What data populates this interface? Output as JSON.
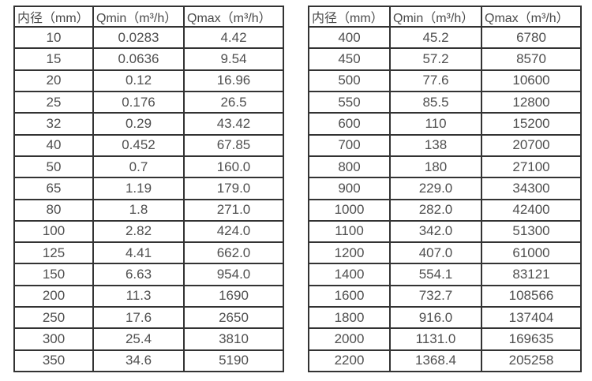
{
  "page": {
    "background_color": "#ffffff",
    "border_color": "#333333",
    "text_color": "#4f4f4f"
  },
  "tables": [
    {
      "name": "flow-table-dn10-dn350",
      "headers": [
        "内径（mm）",
        "Qmin（m³/h）",
        "Qmax（m³/h）"
      ],
      "rows": [
        [
          "10",
          "0.0283",
          "4.42"
        ],
        [
          "15",
          "0.0636",
          "9.54"
        ],
        [
          "20",
          "0.12",
          "16.96"
        ],
        [
          "25",
          "0.176",
          "26.5"
        ],
        [
          "32",
          "0.29",
          "43.42"
        ],
        [
          "40",
          "0.452",
          "67.85"
        ],
        [
          "50",
          "0.7",
          "160.0"
        ],
        [
          "65",
          "1.19",
          "179.0"
        ],
        [
          "80",
          "1.8",
          "271.0"
        ],
        [
          "100",
          "2.82",
          "424.0"
        ],
        [
          "125",
          "4.41",
          "662.0"
        ],
        [
          "150",
          "6.63",
          "954.0"
        ],
        [
          "200",
          "11.3",
          "1690"
        ],
        [
          "250",
          "17.6",
          "2650"
        ],
        [
          "300",
          "25.4",
          "3810"
        ],
        [
          "350",
          "34.6",
          "5190"
        ]
      ]
    },
    {
      "name": "flow-table-dn400-dn2200",
      "headers": [
        "内径（mm）",
        "Qmin（m³/h）",
        "Qmax（m³/h）"
      ],
      "rows": [
        [
          "400",
          "45.2",
          "6780"
        ],
        [
          "450",
          "57.2",
          "8570"
        ],
        [
          "500",
          "77.6",
          "10600"
        ],
        [
          "550",
          "85.5",
          "12800"
        ],
        [
          "600",
          "110",
          "15200"
        ],
        [
          "700",
          "138",
          "20700"
        ],
        [
          "800",
          "180",
          "27100"
        ],
        [
          "900",
          "229.0",
          "34300"
        ],
        [
          "1000",
          "282.0",
          "42400"
        ],
        [
          "1100",
          "342.0",
          "51300"
        ],
        [
          "1200",
          "407.0",
          "61000"
        ],
        [
          "1400",
          "554.1",
          "83121"
        ],
        [
          "1600",
          "732.7",
          "108566"
        ],
        [
          "1800",
          "916.0",
          "137404"
        ],
        [
          "2000",
          "1131.0",
          "169635"
        ],
        [
          "2200",
          "1368.4",
          "205258"
        ]
      ]
    }
  ]
}
